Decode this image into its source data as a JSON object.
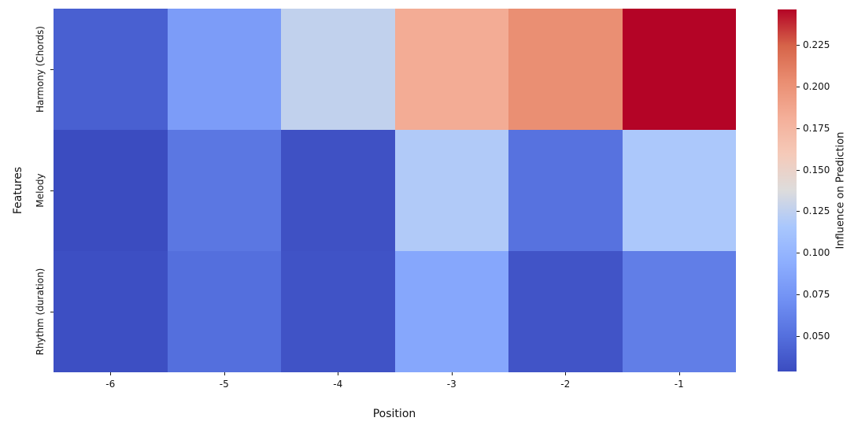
{
  "chart_data": {
    "type": "heatmap",
    "title": "",
    "xlabel": "Position",
    "ylabel": "Features",
    "x_categories": [
      "-6",
      "-5",
      "-4",
      "-3",
      "-2",
      "-1"
    ],
    "y_categories": [
      "Harmony (Chords)",
      "Melody",
      "Rhythm (duration)"
    ],
    "series": [
      {
        "name": "Harmony (Chords)",
        "values": [
          0.041,
          0.081,
          0.126,
          0.183,
          0.202,
          0.246
        ]
      },
      {
        "name": "Melody",
        "values": [
          0.029,
          0.055,
          0.032,
          0.119,
          0.052,
          0.117
        ]
      },
      {
        "name": "Rhythm (duration)",
        "values": [
          0.031,
          0.05,
          0.033,
          0.089,
          0.034,
          0.06
        ]
      }
    ],
    "grid": false,
    "legend_position": "right-colorbar",
    "colorbar": {
      "label": "Influence on Prediction",
      "vmin": 0.029,
      "vmax": 0.246,
      "tick_values": [
        0.05,
        0.075,
        0.1,
        0.125,
        0.15,
        0.175,
        0.2,
        0.225
      ],
      "tick_labels": [
        "0.050",
        "0.075",
        "0.100",
        "0.125",
        "0.150",
        "0.175",
        "0.200",
        "0.225"
      ]
    },
    "colormap": {
      "name": "coolwarm",
      "stops": [
        {
          "t": 0.0,
          "color": "#3b4cc0"
        },
        {
          "t": 0.1,
          "color": "#5570de"
        },
        {
          "t": 0.2,
          "color": "#7191f4"
        },
        {
          "t": 0.3,
          "color": "#8daefe"
        },
        {
          "t": 0.4,
          "color": "#a9c7fd"
        },
        {
          "t": 0.5,
          "color": "#dddcdc"
        },
        {
          "t": 0.6,
          "color": "#f5cab9"
        },
        {
          "t": 0.7,
          "color": "#f4af99"
        },
        {
          "t": 0.8,
          "color": "#ea8e72"
        },
        {
          "t": 0.9,
          "color": "#d66449"
        },
        {
          "t": 1.0,
          "color": "#b40426"
        }
      ]
    }
  }
}
